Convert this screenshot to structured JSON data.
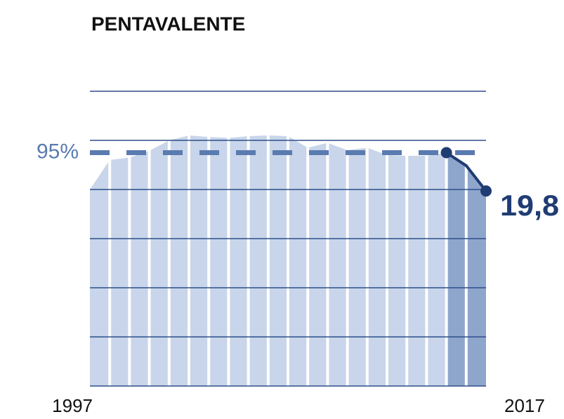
{
  "chart_data": {
    "type": "area",
    "title": "PENTAVALENTE",
    "categories": [
      "1997",
      null,
      null,
      null,
      null,
      null,
      null,
      null,
      null,
      null,
      null,
      null,
      null,
      null,
      null,
      null,
      null,
      null,
      null,
      null,
      "2017"
    ],
    "values": [
      80,
      92,
      93,
      95.7,
      100,
      102,
      101.4,
      101,
      101.7,
      102,
      101.7,
      97,
      99,
      96,
      97,
      94,
      93.7,
      93.7,
      95,
      89.7,
      79.4
    ],
    "color": "#c8d5ea",
    "highlight_color": "#8fa6cc",
    "line_color": "#1f3c73",
    "grid_color": "#2e4e8a",
    "ylim": [
      0,
      120
    ],
    "yticks": [
      0,
      20,
      40,
      60,
      80,
      100,
      120
    ],
    "grid": true,
    "target": {
      "value": 95,
      "label": "95%",
      "color": "#5a7bb0"
    },
    "annotation": "19,8"
  }
}
